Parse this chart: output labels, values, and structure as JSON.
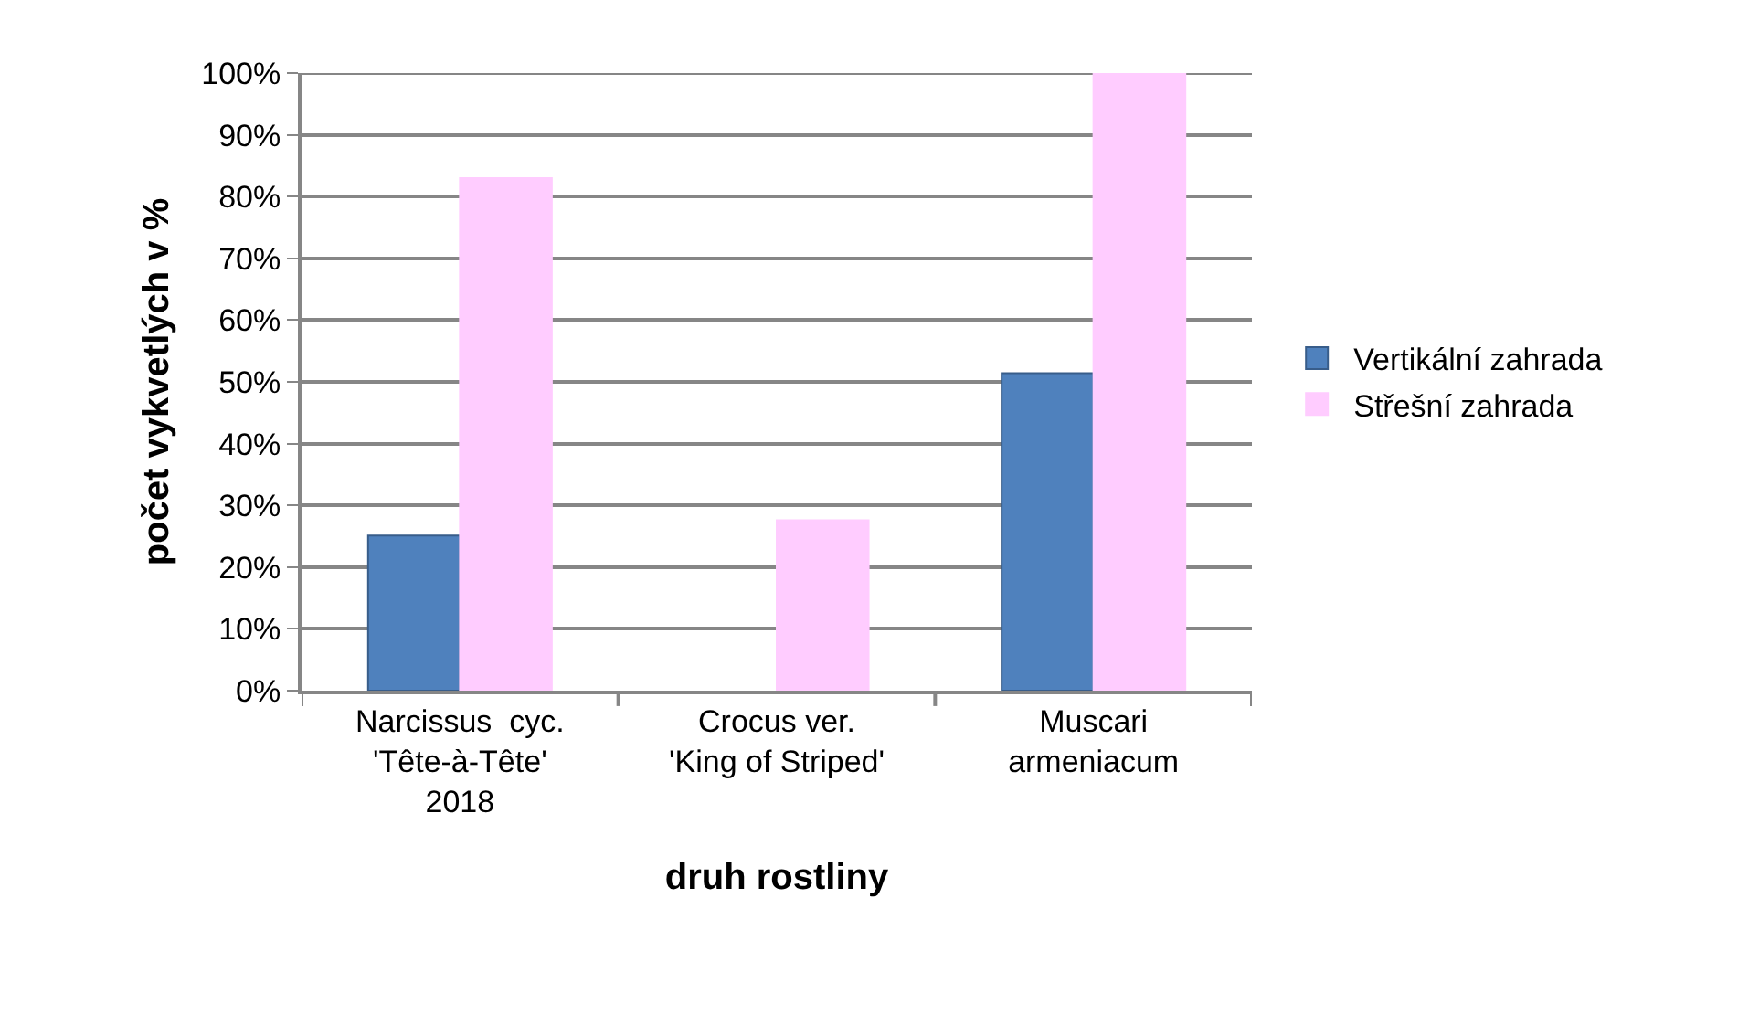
{
  "chart_data": {
    "type": "bar",
    "xlabel": "druh rostliny",
    "ylabel": "počet vykvetlých v %",
    "categories": [
      "Narcissus  cyc.\n'Tête-à-Tête'\n2018",
      "Crocus ver.\n'King of Striped'",
      "Muscari\narmeniacum"
    ],
    "series": [
      {
        "name": "Vertikální zahrada",
        "color": "#4f81bd",
        "values": [
          25.1,
          null,
          51.4
        ]
      },
      {
        "name": "Střešní zahrada",
        "color": "#ffccff",
        "values": [
          83.0,
          27.6,
          100
        ]
      }
    ],
    "ylim": [
      0,
      100
    ],
    "yticks": [
      {
        "value": 0,
        "label": "0%"
      },
      {
        "value": 10,
        "label": "10%"
      },
      {
        "value": 20,
        "label": "20%"
      },
      {
        "value": 30,
        "label": "30%"
      },
      {
        "value": 40,
        "label": "40%"
      },
      {
        "value": 50,
        "label": "50%"
      },
      {
        "value": 60,
        "label": "60%"
      },
      {
        "value": 70,
        "label": "70%"
      },
      {
        "value": 80,
        "label": "80%"
      },
      {
        "value": 90,
        "label": "90%"
      },
      {
        "value": 100,
        "label": "100%"
      }
    ],
    "grid": "y",
    "legend": "right"
  }
}
